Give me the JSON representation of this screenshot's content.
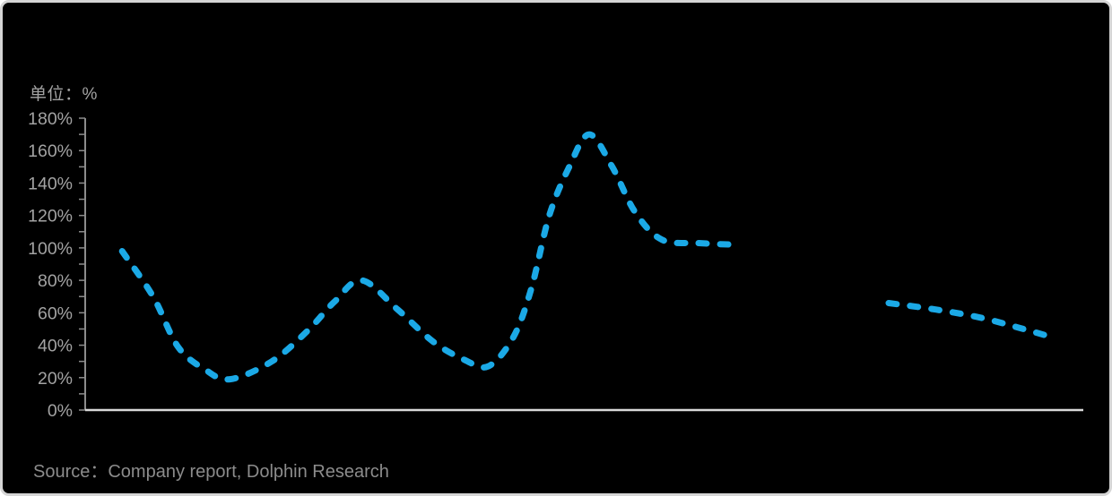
{
  "chart_data": {
    "type": "line",
    "title": "",
    "unit_label": "单位：%",
    "legend": [],
    "grid": false,
    "y_axis": {
      "min": 0,
      "max": 180,
      "major_step": 20,
      "minor_step": 10,
      "unit": "%",
      "tick_labels": [
        "0%",
        "20%",
        "40%",
        "60%",
        "80%",
        "100%",
        "120%",
        "140%",
        "160%",
        "180%"
      ]
    },
    "x_axis": {
      "tick_labels": []
    },
    "series": [
      {
        "name": "growth-rate-dashed-line",
        "color": "#1ba9e6",
        "style": "dashed",
        "segments": [
          {
            "comment": "x = fraction along plot width, y = percent value",
            "points": [
              [
                0.037,
                98
              ],
              [
                0.068,
                70
              ],
              [
                0.093,
                39
              ],
              [
                0.12,
                25
              ],
              [
                0.145,
                19
              ],
              [
                0.187,
                30
              ],
              [
                0.223,
                49
              ],
              [
                0.25,
                67
              ],
              [
                0.277,
                80
              ],
              [
                0.313,
                62
              ],
              [
                0.349,
                42
              ],
              [
                0.38,
                31
              ],
              [
                0.404,
                27
              ],
              [
                0.429,
                45
              ],
              [
                0.447,
                75
              ],
              [
                0.465,
                120
              ],
              [
                0.485,
                150
              ],
              [
                0.505,
                170
              ],
              [
                0.528,
                150
              ],
              [
                0.551,
                122
              ],
              [
                0.578,
                105
              ],
              [
                0.614,
                103
              ],
              [
                0.65,
                102
              ]
            ]
          },
          {
            "comment": "second detached segment after gap",
            "points": [
              [
                0.805,
                66
              ],
              [
                0.852,
                62
              ],
              [
                0.897,
                57
              ],
              [
                0.934,
                51
              ],
              [
                0.963,
                46
              ]
            ]
          }
        ]
      }
    ],
    "colors": {
      "background": "#000000",
      "card_border": "#d5d5d5",
      "y_axis_line": "#8c8c8c",
      "x_axis_line": "#d9d9d9",
      "tick_label": "#a3a3a3",
      "line": "#1ba9e6"
    }
  },
  "footer": {
    "source": "Source：Company report, Dolphin Research"
  }
}
